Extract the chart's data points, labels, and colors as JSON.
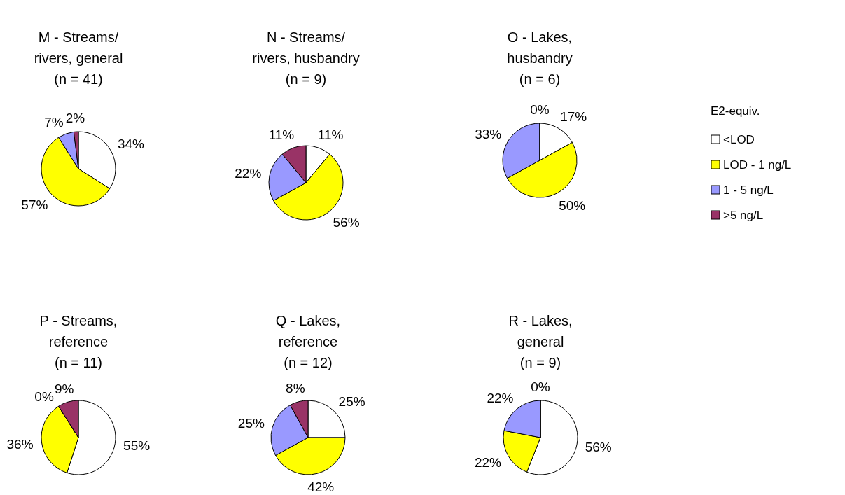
{
  "chart_data": [
    {
      "type": "pie",
      "title": "M - Streams/\nrivers, general\n(n = 41)",
      "categories": [
        null,
        null,
        null,
        null
      ],
      "values": [
        34,
        57,
        7,
        2
      ],
      "value_labels": [
        "34%",
        "57%",
        "7%",
        "2%"
      ],
      "colors": [
        "#ffffff",
        "#ffff00",
        "#9999ff",
        "#993366"
      ]
    },
    {
      "type": "pie",
      "title": "N - Streams/\nrivers, husbandry\n(n = 9)",
      "categories": [
        null,
        null,
        null,
        null
      ],
      "values": [
        11,
        56,
        22,
        11
      ],
      "value_labels": [
        "11%",
        "56%",
        "22%",
        "11%"
      ],
      "colors": [
        "#ffffff",
        "#ffff00",
        "#9999ff",
        "#993366"
      ]
    },
    {
      "type": "pie",
      "title": "O - Lakes,\nhusbandry\n(n = 6)",
      "categories": [
        "<LOD",
        "LOD - 1 ng/L",
        "1 - 5 ng/L",
        ">5 ng/L"
      ],
      "values": [
        17,
        50,
        33,
        0
      ],
      "value_labels": [
        "17%",
        "50%",
        "33%",
        "0%"
      ],
      "colors": [
        "#ffffff",
        "#ffff00",
        "#9999ff",
        "#993366"
      ],
      "legend": "right",
      "legend_title": "E2-equiv."
    },
    {
      "type": "pie",
      "title": "P - Streams,\nreference\n(n = 11)",
      "categories": [
        null,
        null,
        null,
        null
      ],
      "values": [
        55,
        36,
        0,
        9
      ],
      "value_labels": [
        "55%",
        "36%",
        "0%",
        "9%"
      ],
      "colors": [
        "#ffffff",
        "#ffff00",
        "#9999ff",
        "#993366"
      ]
    },
    {
      "type": "pie",
      "title": "Q - Lakes,\nreference\n(n = 12)",
      "categories": [
        null,
        null,
        null,
        null
      ],
      "values": [
        25,
        42,
        25,
        8
      ],
      "value_labels": [
        "25%",
        "42%",
        "25%",
        "8%"
      ],
      "colors": [
        "#ffffff",
        "#ffff00",
        "#9999ff",
        "#993366"
      ]
    },
    {
      "type": "pie",
      "title": "R - Lakes,\ngeneral\n(n = 9)",
      "categories": [
        null,
        null,
        null,
        null
      ],
      "values": [
        56,
        22,
        22,
        0
      ],
      "value_labels": [
        "56%",
        "22%",
        "22%",
        "0%"
      ],
      "colors": [
        "#ffffff",
        "#ffff00",
        "#9999ff",
        "#993366"
      ]
    }
  ]
}
